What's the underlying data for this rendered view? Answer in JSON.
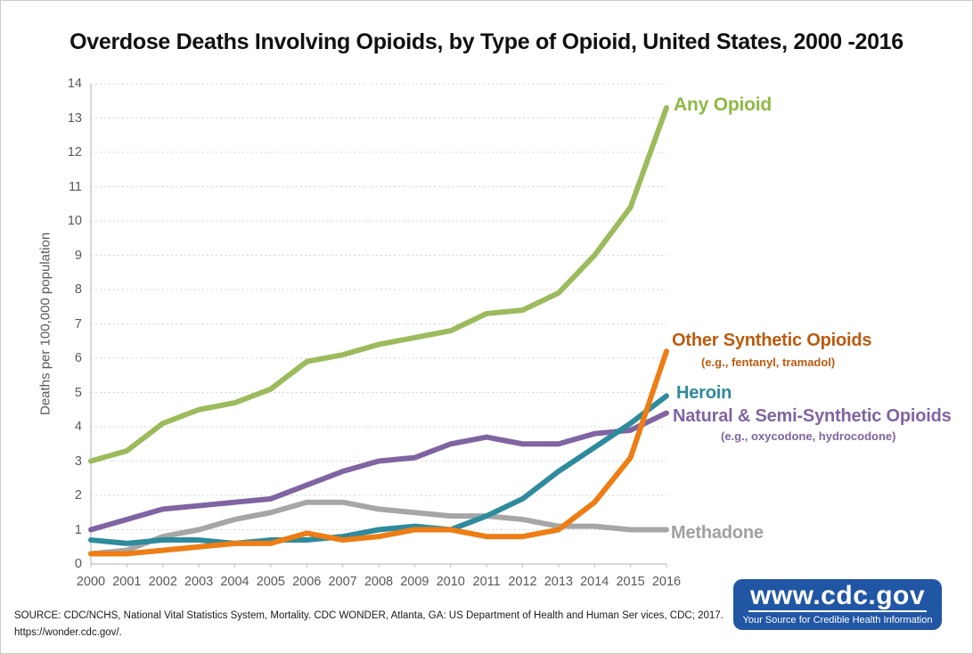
{
  "title": "Overdose Deaths Involving Opioids, by Type of Opioid, United States, 2000 -2016",
  "chart_data": {
    "type": "line",
    "x": [
      2000,
      2001,
      2002,
      2003,
      2004,
      2005,
      2006,
      2007,
      2008,
      2009,
      2010,
      2011,
      2012,
      2013,
      2014,
      2015,
      2016
    ],
    "y_ticks": [
      0,
      1,
      2,
      3,
      4,
      5,
      6,
      7,
      8,
      9,
      10,
      11,
      12,
      13,
      14
    ],
    "ylim": [
      0,
      14
    ],
    "xlabel": "",
    "ylabel": "Deaths per 100,000 population",
    "grid": "horizontal-dotted",
    "legend_position": "right-end-of-lines",
    "axis_color": "#BFBFBF",
    "grid_color": "#D6D6D6",
    "tick_label_color": "#595959",
    "series": [
      {
        "id": "any-opioid",
        "name": "Any Opioid",
        "color": "#9CBB5C",
        "label_color": "#8FB843",
        "values": [
          3.0,
          3.3,
          4.1,
          4.5,
          4.7,
          5.1,
          5.9,
          6.1,
          6.4,
          6.6,
          6.8,
          7.3,
          7.4,
          7.9,
          9.0,
          10.4,
          13.3
        ]
      },
      {
        "id": "other-synthetic-opioids",
        "name": "Other Synthetic Opioids",
        "subtitle": "(e.g., fentanyl, tramadol)",
        "color": "#ED7D14",
        "label_color": "#BB5B0F",
        "values": [
          0.3,
          0.3,
          0.4,
          0.5,
          0.6,
          0.6,
          0.9,
          0.7,
          0.8,
          1.0,
          1.0,
          0.8,
          0.8,
          1.0,
          1.8,
          3.1,
          6.2
        ]
      },
      {
        "id": "heroin",
        "name": "Heroin",
        "color": "#2E8B9C",
        "label_color": "#2E8B9C",
        "values": [
          0.7,
          0.6,
          0.7,
          0.7,
          0.6,
          0.7,
          0.7,
          0.8,
          1.0,
          1.1,
          1.0,
          1.4,
          1.9,
          2.7,
          3.4,
          4.1,
          4.9
        ]
      },
      {
        "id": "natural-semi-synthetic-opioids",
        "name": "Natural & Semi-Synthetic Opioids",
        "subtitle": "(e.g., oxycodone, hydrocodone)",
        "color": "#8064A2",
        "label_color": "#8064A2",
        "values": [
          1.0,
          1.3,
          1.6,
          1.7,
          1.8,
          1.9,
          2.3,
          2.7,
          3.0,
          3.1,
          3.5,
          3.7,
          3.5,
          3.5,
          3.8,
          3.9,
          4.4
        ]
      },
      {
        "id": "methadone",
        "name": "Methadone",
        "color": "#A6A6A6",
        "label_color": "#A0A0A0",
        "values": [
          0.3,
          0.4,
          0.8,
          1.0,
          1.3,
          1.5,
          1.8,
          1.8,
          1.6,
          1.5,
          1.4,
          1.4,
          1.3,
          1.1,
          1.1,
          1.0,
          1.0
        ]
      }
    ]
  },
  "source": {
    "line1": "SOURCE: CDC/NCHS, National Vital Statistics System, Mortality. CDC WONDER, Atlanta, GA: US Department of Health and Human Ser vices, CDC; 2017.",
    "line2": "https://wonder.cdc.gov/."
  },
  "logo": {
    "url_text": "www.cdc.gov",
    "tagline": "Your Source for Credible Health Information",
    "bg_color": "#2156A5"
  }
}
